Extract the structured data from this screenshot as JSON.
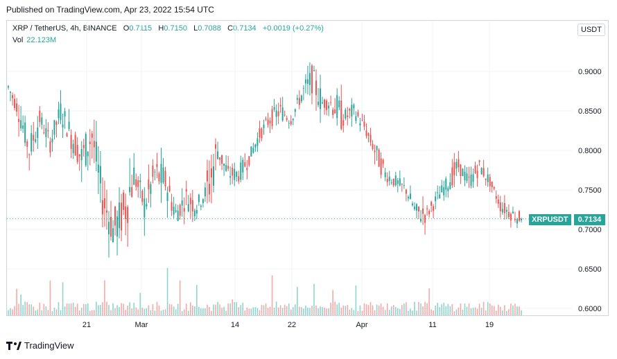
{
  "header": {
    "published": "Published on TradingView.com, Apr 23, 2022 15:54 UTC"
  },
  "legend": {
    "symbol": "XRP / TetherUS, 4h, BINANCE",
    "o_label": "O",
    "o": "0.7115",
    "h_label": "H",
    "h": "0.7150",
    "l_label": "L",
    "l": "0.7088",
    "c_label": "C",
    "c": "0.7134",
    "change": "+0.0019 (+0.27%)",
    "vol_label": "Vol",
    "vol": "22.123M"
  },
  "currency": "USDT",
  "price_tag": {
    "symbol": "XRPUSDT",
    "price": "0.7134"
  },
  "brand": "TradingView",
  "colors": {
    "up": "#26a69a",
    "down": "#ef5350",
    "up_vol": "#8fd4cd",
    "down_vol": "#f5a9a7",
    "grid": "#f0f3fa",
    "axis_text": "#131722"
  },
  "chart_data": {
    "type": "candlestick",
    "y_ticks": [
      "0.9000",
      "0.8500",
      "0.8000",
      "0.7500",
      "0.7000",
      "0.6500",
      "0.6000"
    ],
    "ylim": [
      0.595,
      0.95
    ],
    "x_ticks": [
      "21",
      "Mar",
      "14",
      "22",
      "Apr",
      "11",
      "19"
    ],
    "last_close": 0.7134,
    "price_path": [
      [
        0.88,
        0.905,
        0.86
      ],
      [
        0.85,
        0.87,
        0.8
      ],
      [
        0.8,
        0.83,
        0.75
      ],
      [
        0.84,
        0.86,
        0.81
      ],
      [
        0.81,
        0.83,
        0.77
      ],
      [
        0.85,
        0.87,
        0.8
      ],
      [
        0.82,
        0.85,
        0.76
      ],
      [
        0.79,
        0.86,
        0.75
      ],
      [
        0.82,
        0.84,
        0.73
      ],
      [
        0.74,
        0.78,
        0.67
      ],
      [
        0.7,
        0.74,
        0.62
      ],
      [
        0.72,
        0.8,
        0.65
      ],
      [
        0.77,
        0.79,
        0.71
      ],
      [
        0.73,
        0.79,
        0.7
      ],
      [
        0.77,
        0.81,
        0.71
      ],
      [
        0.76,
        0.78,
        0.7
      ],
      [
        0.72,
        0.76,
        0.7
      ],
      [
        0.74,
        0.78,
        0.71
      ],
      [
        0.73,
        0.75,
        0.7
      ],
      [
        0.75,
        0.85,
        0.71
      ],
      [
        0.8,
        0.81,
        0.75
      ],
      [
        0.77,
        0.79,
        0.74
      ],
      [
        0.77,
        0.8,
        0.75
      ],
      [
        0.79,
        0.82,
        0.78
      ],
      [
        0.82,
        0.84,
        0.8
      ],
      [
        0.84,
        0.87,
        0.82
      ],
      [
        0.85,
        0.87,
        0.82
      ],
      [
        0.84,
        0.86,
        0.82
      ],
      [
        0.87,
        0.91,
        0.84
      ],
      [
        0.89,
        0.93,
        0.85
      ],
      [
        0.86,
        0.88,
        0.84
      ],
      [
        0.86,
        0.87,
        0.78
      ],
      [
        0.84,
        0.86,
        0.81
      ],
      [
        0.85,
        0.86,
        0.82
      ],
      [
        0.83,
        0.84,
        0.8
      ],
      [
        0.8,
        0.82,
        0.76
      ],
      [
        0.77,
        0.79,
        0.75
      ],
      [
        0.76,
        0.78,
        0.74
      ],
      [
        0.75,
        0.76,
        0.72
      ],
      [
        0.72,
        0.74,
        0.68
      ],
      [
        0.72,
        0.74,
        0.7
      ],
      [
        0.74,
        0.75,
        0.71
      ],
      [
        0.76,
        0.8,
        0.74
      ],
      [
        0.78,
        0.8,
        0.76
      ],
      [
        0.76,
        0.79,
        0.74
      ],
      [
        0.78,
        0.79,
        0.75
      ],
      [
        0.76,
        0.77,
        0.74
      ],
      [
        0.73,
        0.76,
        0.72
      ],
      [
        0.72,
        0.74,
        0.7
      ],
      [
        0.7134,
        0.715,
        0.7088
      ]
    ],
    "volume_scale": "relative"
  }
}
